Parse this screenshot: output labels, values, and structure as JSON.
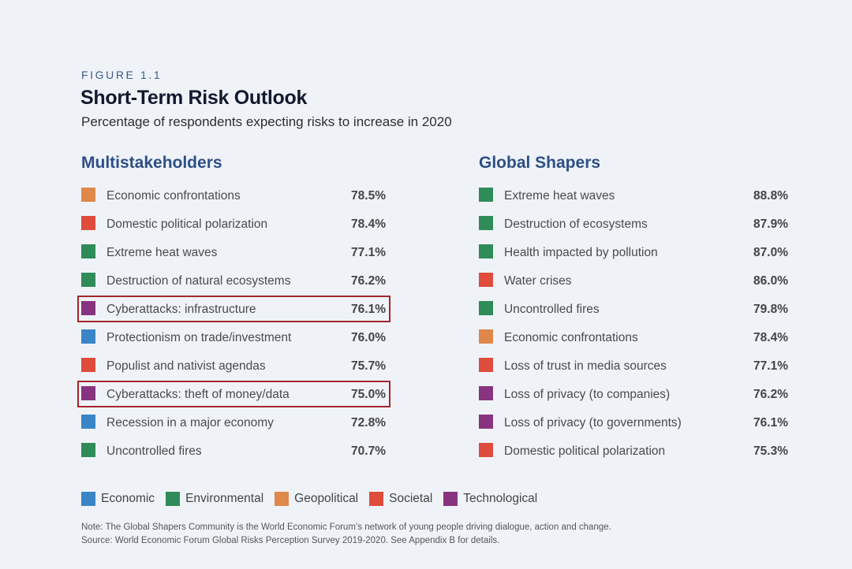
{
  "figure_label": "FIGURE 1.1",
  "colors": {
    "Economic": "#3a85c6",
    "Environmental": "#2f8b57",
    "Geopolitical": "#e0884a",
    "Societal": "#df4b3c",
    "Technological": "#88337f"
  },
  "chart_data": {
    "type": "table",
    "title": "Short-Term Risk Outlook",
    "subtitle": "Percentage of respondents expecting risks to increase in 2020",
    "panels": [
      {
        "heading": "Multistakeholders",
        "rows": [
          {
            "label": "Economic confrontations",
            "value": "78.5%",
            "category": "Geopolitical",
            "highlight": false
          },
          {
            "label": "Domestic political polarization",
            "value": "78.4%",
            "category": "Societal",
            "highlight": false
          },
          {
            "label": "Extreme heat waves",
            "value": "77.1%",
            "category": "Environmental",
            "highlight": false
          },
          {
            "label": "Destruction of natural ecosystems",
            "value": "76.2%",
            "category": "Environmental",
            "highlight": false
          },
          {
            "label": "Cyberattacks: infrastructure",
            "value": "76.1%",
            "category": "Technological",
            "highlight": true
          },
          {
            "label": "Protectionism on trade/investment",
            "value": "76.0%",
            "category": "Economic",
            "highlight": false
          },
          {
            "label": "Populist and nativist agendas",
            "value": "75.7%",
            "category": "Societal",
            "highlight": false
          },
          {
            "label": "Cyberattacks: theft of money/data",
            "value": "75.0%",
            "category": "Technological",
            "highlight": true
          },
          {
            "label": "Recession in a major economy",
            "value": "72.8%",
            "category": "Economic",
            "highlight": false
          },
          {
            "label": "Uncontrolled fires",
            "value": "70.7%",
            "category": "Environmental",
            "highlight": false
          }
        ]
      },
      {
        "heading": "Global Shapers",
        "rows": [
          {
            "label": "Extreme heat waves",
            "value": "88.8%",
            "category": "Environmental",
            "highlight": false
          },
          {
            "label": "Destruction of ecosystems",
            "value": "87.9%",
            "category": "Environmental",
            "highlight": false
          },
          {
            "label": "Health impacted by pollution",
            "value": "87.0%",
            "category": "Environmental",
            "highlight": false
          },
          {
            "label": "Water crises",
            "value": "86.0%",
            "category": "Societal",
            "highlight": false
          },
          {
            "label": "Uncontrolled fires",
            "value": "79.8%",
            "category": "Environmental",
            "highlight": false
          },
          {
            "label": "Economic confrontations",
            "value": "78.4%",
            "category": "Geopolitical",
            "highlight": false
          },
          {
            "label": "Loss of trust in media sources",
            "value": "77.1%",
            "category": "Societal",
            "highlight": false
          },
          {
            "label": "Loss of privacy (to companies)",
            "value": "76.2%",
            "category": "Technological",
            "highlight": false
          },
          {
            "label": "Loss of privacy (to governments)",
            "value": "76.1%",
            "category": "Technological",
            "highlight": false
          },
          {
            "label": "Domestic political polarization",
            "value": "75.3%",
            "category": "Societal",
            "highlight": false
          }
        ]
      }
    ],
    "legend": [
      "Economic",
      "Environmental",
      "Geopolitical",
      "Societal",
      "Technological"
    ]
  },
  "note": "Note: The Global Shapers Community is the World Economic Forum’s network of young people driving dialogue, action and change.",
  "source": "Source: World Economic Forum Global Risks Perception Survey 2019-2020. See Appendix B for details."
}
